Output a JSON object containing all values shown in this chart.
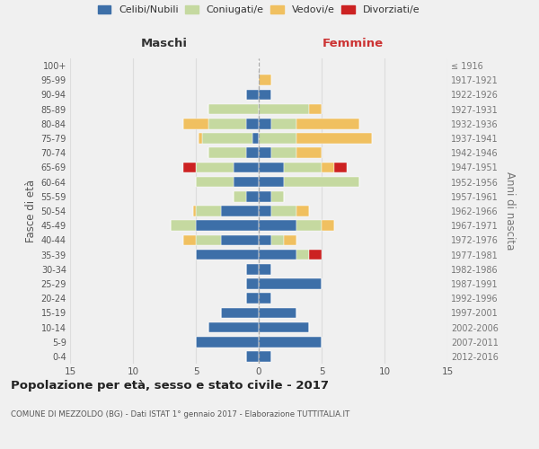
{
  "age_groups": [
    "0-4",
    "5-9",
    "10-14",
    "15-19",
    "20-24",
    "25-29",
    "30-34",
    "35-39",
    "40-44",
    "45-49",
    "50-54",
    "55-59",
    "60-64",
    "65-69",
    "70-74",
    "75-79",
    "80-84",
    "85-89",
    "90-94",
    "95-99",
    "100+"
  ],
  "birth_years": [
    "2012-2016",
    "2007-2011",
    "2002-2006",
    "1997-2001",
    "1992-1996",
    "1987-1991",
    "1982-1986",
    "1977-1981",
    "1972-1976",
    "1967-1971",
    "1962-1966",
    "1957-1961",
    "1952-1956",
    "1947-1951",
    "1942-1946",
    "1937-1941",
    "1932-1936",
    "1927-1931",
    "1922-1926",
    "1917-1921",
    "≤ 1916"
  ],
  "colors": {
    "celibi": "#3d6fa8",
    "coniugati": "#c5d9a0",
    "vedovi": "#f0c060",
    "divorziati": "#cc2222"
  },
  "males": {
    "celibi": [
      1,
      5,
      4,
      3,
      1,
      1,
      1,
      5,
      3,
      5,
      3,
      1,
      2,
      2,
      1,
      0.5,
      1,
      0,
      1,
      0,
      0
    ],
    "coniugati": [
      0,
      0,
      0,
      0,
      0,
      0,
      0,
      0,
      2,
      2,
      2,
      1,
      3,
      3,
      3,
      4,
      3,
      4,
      0,
      0,
      0
    ],
    "vedovi": [
      0,
      0,
      0,
      0,
      0,
      0,
      0,
      0,
      1,
      0,
      0.2,
      0,
      0,
      0,
      0,
      0.3,
      2,
      0,
      0,
      0,
      0
    ],
    "divorziati": [
      0,
      0,
      0,
      0,
      0,
      0,
      0,
      0,
      0,
      0,
      0,
      0,
      0,
      1,
      0,
      0,
      0,
      0,
      0,
      0,
      0
    ]
  },
  "females": {
    "celibi": [
      1,
      5,
      4,
      3,
      1,
      5,
      1,
      3,
      1,
      3,
      1,
      1,
      2,
      2,
      1,
      0,
      1,
      0,
      1,
      0,
      0
    ],
    "coniugati": [
      0,
      0,
      0,
      0,
      0,
      0,
      0,
      1,
      1,
      2,
      2,
      1,
      6,
      3,
      2,
      3,
      2,
      4,
      0,
      0,
      0
    ],
    "vedovi": [
      0,
      0,
      0,
      0,
      0,
      0,
      0,
      0,
      1,
      1,
      1,
      0,
      0,
      1,
      2,
      6,
      5,
      1,
      0,
      1,
      0
    ],
    "divorziati": [
      0,
      0,
      0,
      0,
      0,
      0,
      0,
      1,
      0,
      0,
      0,
      0,
      0,
      1,
      0,
      0,
      0,
      0,
      0,
      0,
      0
    ]
  },
  "xlim": 15,
  "title": "Popolazione per età, sesso e stato civile - 2017",
  "subtitle": "COMUNE DI MEZZOLDO (BG) - Dati ISTAT 1° gennaio 2017 - Elaborazione TUTTITALIA.IT",
  "ylabel_left": "Fasce di età",
  "ylabel_right": "Anni di nascita",
  "xlabel_left": "Maschi",
  "xlabel_right": "Femmine",
  "background_color": "#f0f0f0",
  "grid_color": "#dddddd"
}
